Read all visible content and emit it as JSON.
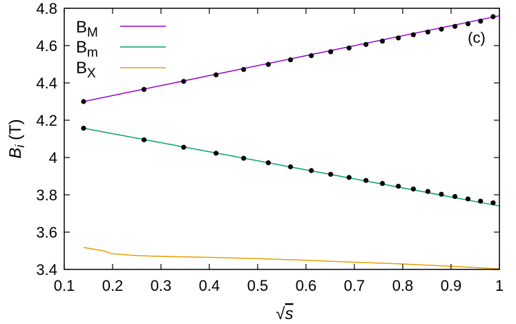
{
  "chart_data": {
    "type": "line",
    "panel_label": "(c)",
    "xlabel": "s",
    "xlabel_prefix": "√",
    "ylabel": "B",
    "ylabel_sub": "i",
    "ylabel_unit": " (T)",
    "xlim": [
      0.1,
      1.0
    ],
    "ylim": [
      3.4,
      4.8
    ],
    "xticks": [
      0.1,
      0.2,
      0.3,
      0.4,
      0.5,
      0.6,
      0.7,
      0.8,
      0.9,
      1.0
    ],
    "xtick_labels": [
      "0.1",
      "0.2",
      "0.3",
      "0.4",
      "0.5",
      "0.6",
      "0.7",
      "0.8",
      "0.9",
      "1"
    ],
    "yticks": [
      3.4,
      3.6,
      3.8,
      4.0,
      4.2,
      4.4,
      4.6,
      4.8
    ],
    "ytick_labels": [
      "3.4",
      "3.6",
      "3.8",
      "4",
      "4.2",
      "4.4",
      "4.6",
      "4.8"
    ],
    "grid": false,
    "legend_position": "top-left",
    "series": [
      {
        "name": "B",
        "name_sub": "M",
        "color": "#9400d3",
        "line_x": [
          0.14,
          1.0
        ],
        "line_y": [
          4.3,
          4.76
        ],
        "points_x": [
          0.14,
          0.265,
          0.347,
          0.414,
          0.471,
          0.522,
          0.568,
          0.611,
          0.651,
          0.689,
          0.724,
          0.758,
          0.791,
          0.822,
          0.852,
          0.88,
          0.908,
          0.935,
          0.961,
          0.987
        ],
        "points_y": [
          4.3,
          4.365,
          4.408,
          4.443,
          4.472,
          4.499,
          4.524,
          4.546,
          4.567,
          4.587,
          4.606,
          4.624,
          4.641,
          4.658,
          4.673,
          4.688,
          4.703,
          4.717,
          4.731,
          4.755
        ]
      },
      {
        "name": "B",
        "name_sub": "m",
        "color": "#009e73",
        "line_x": [
          0.14,
          1.0
        ],
        "line_y": [
          4.157,
          3.74
        ],
        "points_x": [
          0.14,
          0.265,
          0.347,
          0.414,
          0.471,
          0.522,
          0.568,
          0.611,
          0.651,
          0.689,
          0.724,
          0.758,
          0.791,
          0.822,
          0.852,
          0.88,
          0.908,
          0.935,
          0.961,
          0.987
        ],
        "points_y": [
          4.157,
          4.095,
          4.055,
          4.023,
          3.996,
          3.972,
          3.95,
          3.93,
          3.91,
          3.893,
          3.877,
          3.861,
          3.846,
          3.831,
          3.818,
          3.803,
          3.791,
          3.778,
          3.766,
          3.757
        ]
      },
      {
        "name": "B",
        "name_sub": "X",
        "color": "#e69f00",
        "line_x": [
          0.14,
          0.18,
          0.2,
          0.25,
          0.3,
          0.4,
          0.5,
          0.6,
          0.7,
          0.8,
          0.9,
          1.0
        ],
        "line_y": [
          3.518,
          3.5,
          3.484,
          3.474,
          3.47,
          3.465,
          3.458,
          3.449,
          3.439,
          3.429,
          3.417,
          3.403
        ],
        "points_x": [],
        "points_y": []
      }
    ]
  }
}
